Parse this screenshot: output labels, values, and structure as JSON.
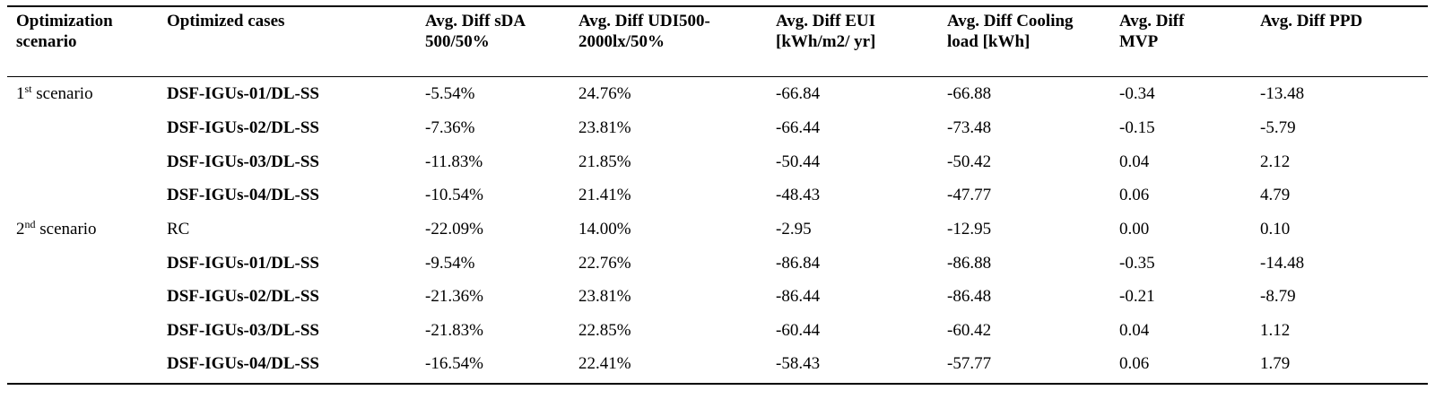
{
  "headers": [
    "Optimization scenario",
    "Optimized cases",
    "Avg. Diff sDA 500/50%",
    "Avg. Diff UDI500-2000lx/50%",
    "Avg. Diff  EUI [kWh/m2/ yr]",
    "Avg. Diff Cooling load [kWh]",
    "Avg. Diff MVP",
    "Avg. Diff PPD"
  ],
  "scenarios": [
    {
      "num": "1",
      "sup": "st",
      "label": " scenario"
    },
    {
      "num": "2",
      "sup": "nd",
      "label": " scenario"
    }
  ],
  "rows": [
    {
      "case": "DSF-IGUs-01/DL-SS",
      "bold": true,
      "sda": "-5.54%",
      "udi": "24.76%",
      "eui": "-66.84",
      "cooling": "-66.88",
      "mvp": "-0.34",
      "ppd": "-13.48"
    },
    {
      "case": "DSF-IGUs-02/DL-SS",
      "bold": true,
      "sda": "-7.36%",
      "udi": "23.81%",
      "eui": "-66.44",
      "cooling": "-73.48",
      "mvp": "-0.15",
      "ppd": "-5.79"
    },
    {
      "case": "DSF-IGUs-03/DL-SS",
      "bold": true,
      "sda": "-11.83%",
      "udi": "21.85%",
      "eui": "-50.44",
      "cooling": "-50.42",
      "mvp": "0.04",
      "ppd": "2.12"
    },
    {
      "case": "DSF-IGUs-04/DL-SS",
      "bold": true,
      "sda": "-10.54%",
      "udi": "21.41%",
      "eui": "-48.43",
      "cooling": "-47.77",
      "mvp": "0.06",
      "ppd": "4.79"
    },
    {
      "case": "RC",
      "bold": false,
      "sda": "-22.09%",
      "udi": "14.00%",
      "eui": "-2.95",
      "cooling": "-12.95",
      "mvp": "0.00",
      "ppd": "0.10"
    },
    {
      "case": "DSF-IGUs-01/DL-SS",
      "bold": true,
      "sda": "-9.54%",
      "udi": "22.76%",
      "eui": "-86.84",
      "cooling": "-86.88",
      "mvp": "-0.35",
      "ppd": "-14.48"
    },
    {
      "case": "DSF-IGUs-02/DL-SS",
      "bold": true,
      "sda": "-21.36%",
      "udi": "23.81%",
      "eui": "-86.44",
      "cooling": "-86.48",
      "mvp": "-0.21",
      "ppd": "-8.79"
    },
    {
      "case": "DSF-IGUs-03/DL-SS",
      "bold": true,
      "sda": "-21.83%",
      "udi": "22.85%",
      "eui": "-60.44",
      "cooling": "-60.42",
      "mvp": "0.04",
      "ppd": "1.12"
    },
    {
      "case": "DSF-IGUs-04/DL-SS",
      "bold": true,
      "sda": "-16.54%",
      "udi": "22.41%",
      "eui": "-58.43",
      "cooling": "-57.77",
      "mvp": "0.06",
      "ppd": "1.79"
    }
  ]
}
